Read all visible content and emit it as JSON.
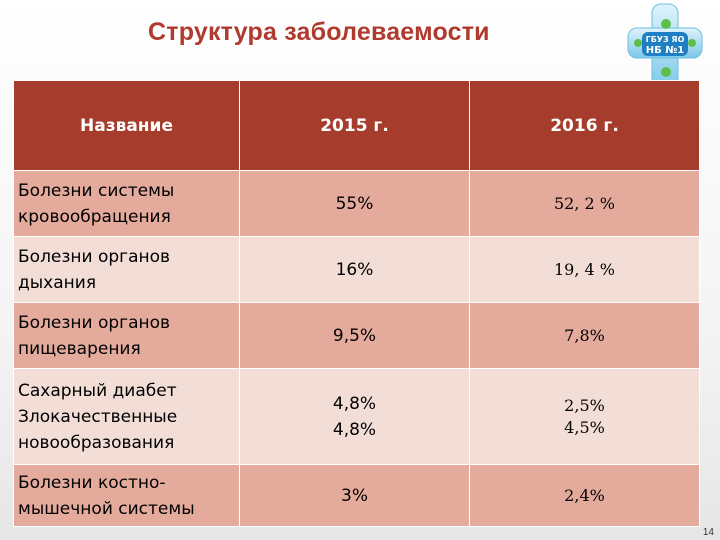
{
  "title": "Структура заболеваемости",
  "logo": {
    "lines": [
      "ГБУЗ ЯО",
      "НБ №1"
    ]
  },
  "table": {
    "headers": [
      "Название",
      "2015 г.",
      "2016 г."
    ],
    "rows": [
      {
        "name": [
          "Болезни системы",
          "кровообращения"
        ],
        "y2015": [
          "55%"
        ],
        "y2016": [
          "52, 2 %"
        ]
      },
      {
        "name": [
          "Болезни органов",
          "дыхания"
        ],
        "y2015": [
          "16%"
        ],
        "y2016": [
          "19, 4 %"
        ]
      },
      {
        "name": [
          "Болезни органов",
          "пищеварения"
        ],
        "y2015": [
          "9,5%"
        ],
        "y2016": [
          "7,8%"
        ]
      },
      {
        "name": [
          "Сахарный диабет",
          "Злокачественные",
          "новообразования"
        ],
        "y2015": [
          "4,8%",
          "4,8%"
        ],
        "y2016": [
          "2,5%",
          "4,5%"
        ]
      },
      {
        "name": [
          "Болезни костно-",
          "мышечной системы"
        ],
        "y2015": [
          "3%"
        ],
        "y2016": [
          "2,4%"
        ]
      }
    ]
  },
  "page_number": "14"
}
